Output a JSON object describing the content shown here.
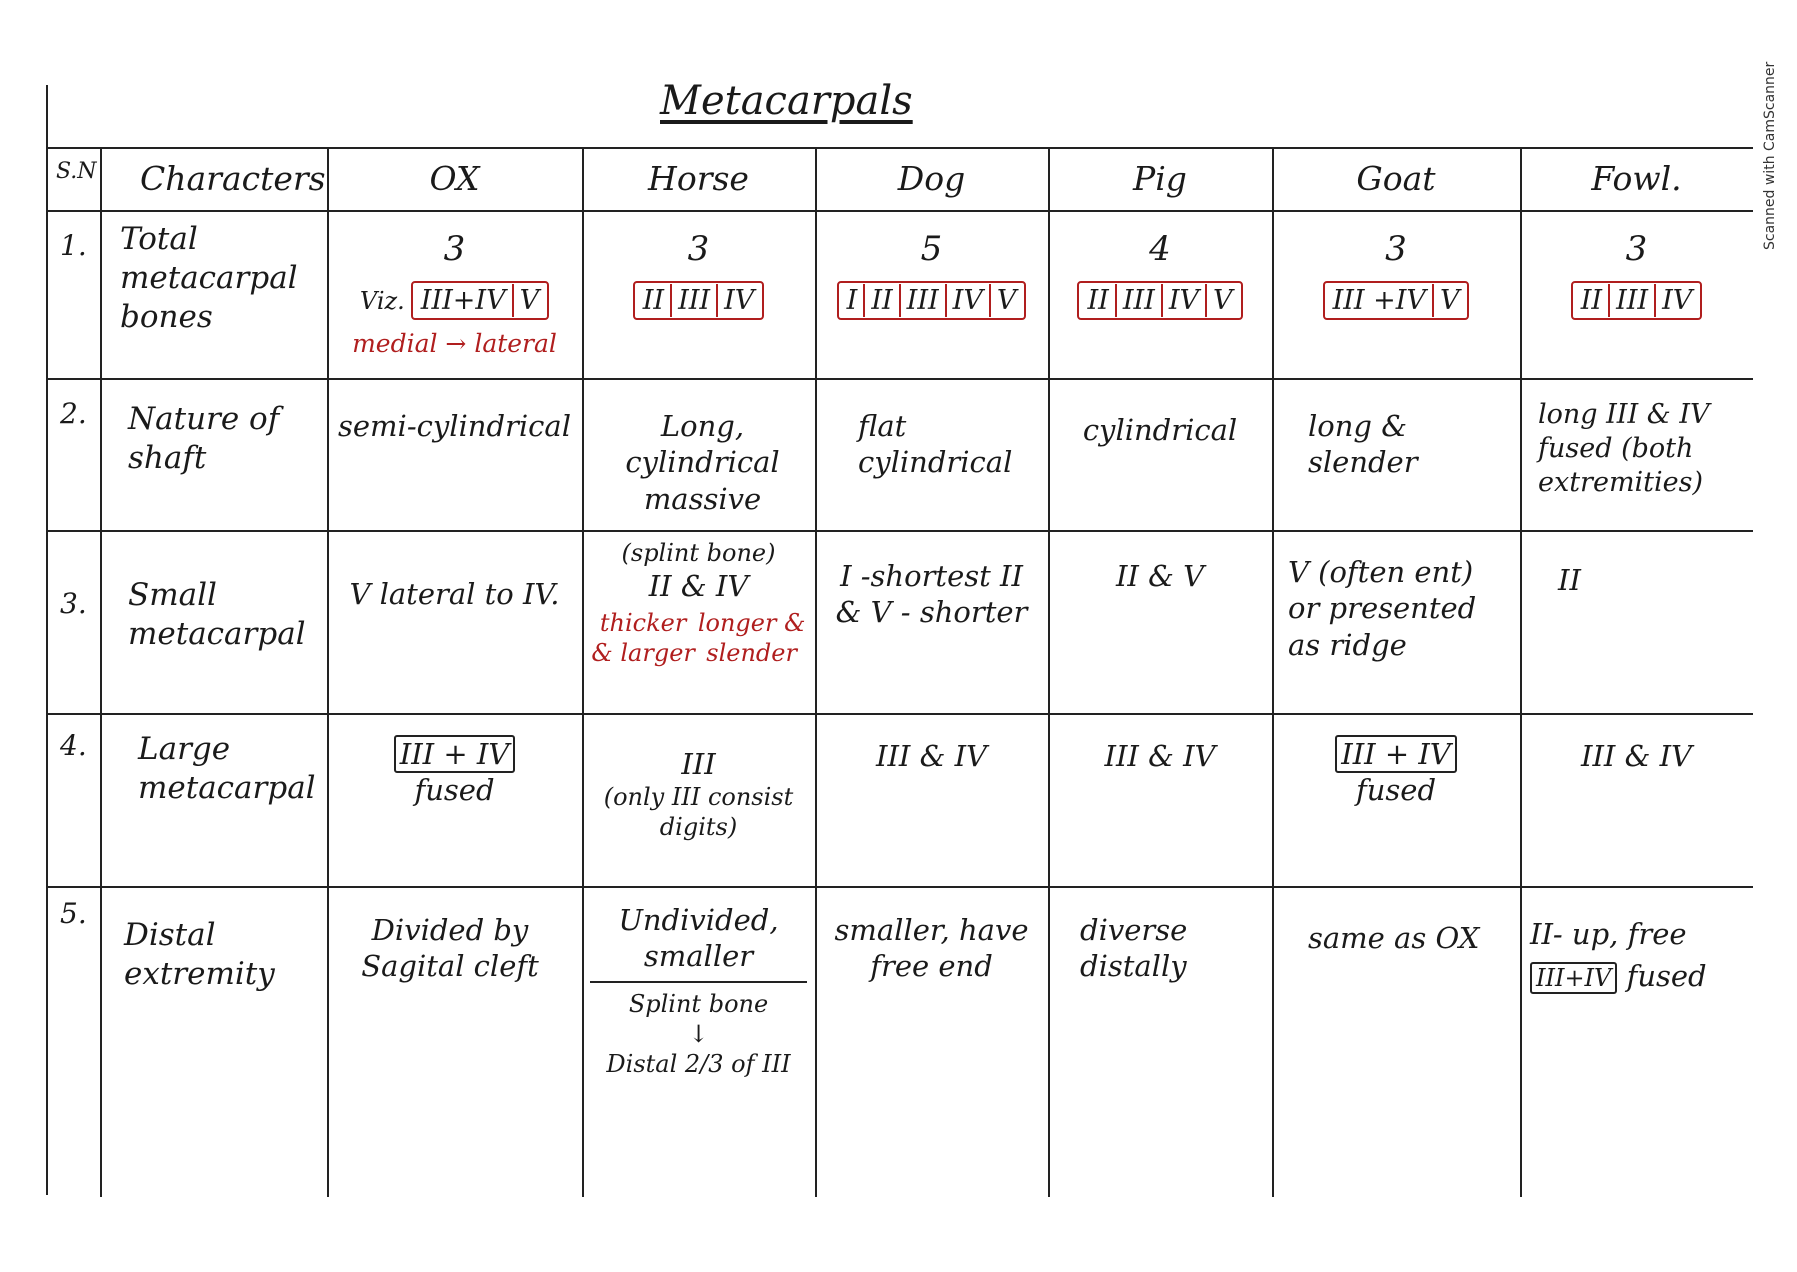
{
  "title": "Metacarpals",
  "watermark": "Scanned with CamScanner",
  "headers": [
    "S.N",
    "Characters",
    "OX",
    "Horse",
    "Dog",
    "Pig",
    "Goat",
    "Fowl."
  ],
  "rows": [
    {
      "sn": "1.",
      "character": "Total metacarpal bones",
      "ox": {
        "count": "3",
        "prefix": "Viz.",
        "boxes": [
          "III+IV",
          "V"
        ],
        "note": "medial → lateral"
      },
      "horse": {
        "count": "3",
        "boxes": [
          "II",
          "III",
          "IV"
        ]
      },
      "dog": {
        "count": "5",
        "boxes": [
          "I",
          "II",
          "III",
          "IV",
          "V"
        ]
      },
      "pig": {
        "count": "4",
        "boxes": [
          "II",
          "III",
          "IV",
          "V"
        ]
      },
      "goat": {
        "count": "3",
        "boxes": [
          "III +IV",
          "V"
        ]
      },
      "fowl": {
        "count": "3",
        "boxes": [
          "II",
          "III",
          "IV"
        ]
      }
    },
    {
      "sn": "2.",
      "character": "Nature of shaft",
      "ox": "semi-cylindrical",
      "horse": "Long, cylindrical massive",
      "dog": "flat cylindrical",
      "pig": "cylindrical",
      "goat": "long & slender",
      "fowl": "long III & IV fused (both extremities)"
    },
    {
      "sn": "3.",
      "character": "Small metacarpal",
      "ox": "V lateral to IV.",
      "horse": {
        "head": "(splint bone)",
        "pair": "II & IV",
        "left": "thicker & larger",
        "right": "longer & slender"
      },
      "dog": "I -shortest II & V - shorter",
      "pig": "II & V",
      "goat": "V (often ent) or presented as ridge",
      "fowl": "II"
    },
    {
      "sn": "4.",
      "character": "Large metacarpal",
      "ox": {
        "box": "III + IV",
        "text": "fused"
      },
      "horse": {
        "main": "III",
        "note": "(only III consist digits)"
      },
      "dog": "III & IV",
      "pig": "III & IV",
      "goat": {
        "box": "III + IV",
        "text": "fused"
      },
      "fowl": "III & IV"
    },
    {
      "sn": "5.",
      "character": "Distal extremity",
      "ox": "Divided by Sagital cleft",
      "horse": {
        "top": "Undivided, smaller",
        "bottom1": "Splint bone",
        "arrow": "↓",
        "bottom2": "Distal 2/3 of III"
      },
      "dog": "smaller, have free end",
      "pig": "diverse distally",
      "goat": "same as OX",
      "fowl": {
        "line1": "II- up, free",
        "box": "III+IV",
        "line2": "fused"
      }
    }
  ]
}
